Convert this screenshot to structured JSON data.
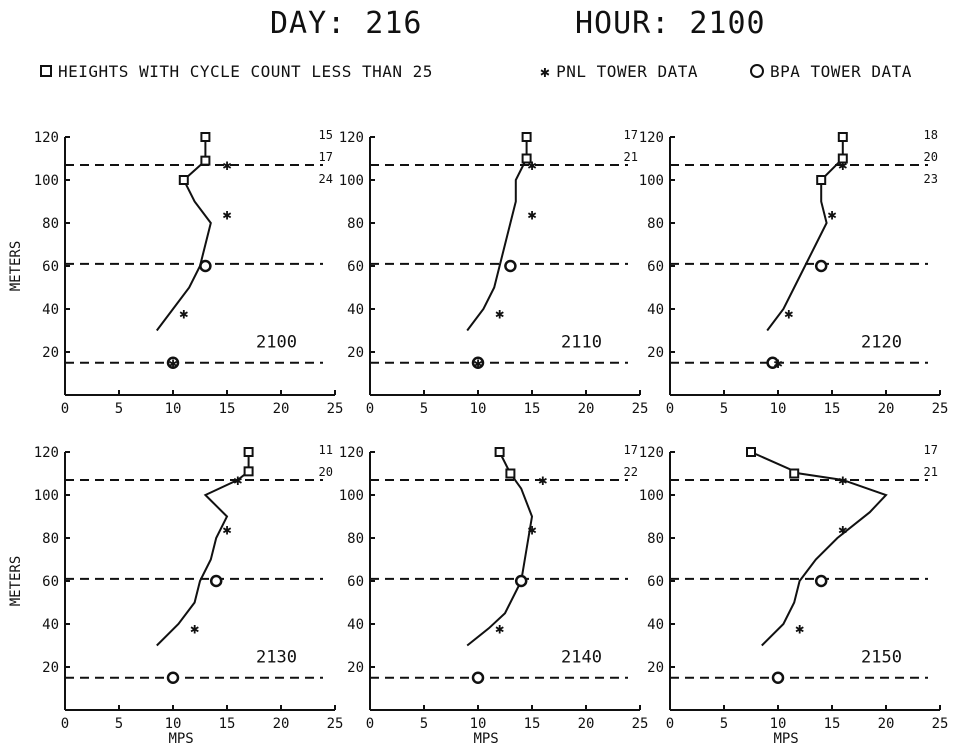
{
  "header": {
    "day_label": "DAY: 216",
    "hour_label": "HOUR: 2100",
    "legend": {
      "square": "HEIGHTS WITH CYCLE COUNT LESS THAN 25",
      "star": "PNL TOWER DATA",
      "circle": "BPA TOWER DATA"
    }
  },
  "axes": {
    "ylabel": "METERS",
    "xlabel": "MPS",
    "xticks": [
      "0",
      "5",
      "10",
      "15",
      "20",
      "25"
    ],
    "yticks": [
      "20",
      "40",
      "60",
      "80",
      "100",
      "120"
    ]
  },
  "chart_data": [
    {
      "type": "line",
      "panel_label": "2100",
      "xlim": [
        0,
        25
      ],
      "ylim": [
        0,
        120
      ],
      "reference_heights": [
        107,
        61,
        15
      ],
      "cycle_counts": [
        "15",
        "17",
        "24"
      ],
      "profile": [
        [
          8.5,
          30
        ],
        [
          10,
          40
        ],
        [
          11.5,
          50
        ],
        [
          12.5,
          60
        ],
        [
          13,
          70
        ],
        [
          13.5,
          80
        ],
        [
          12,
          90
        ],
        [
          11,
          100
        ],
        [
          13,
          109
        ],
        [
          13,
          120
        ]
      ],
      "squares": [
        [
          13,
          120
        ],
        [
          13,
          109
        ],
        [
          11,
          100
        ]
      ],
      "pnl_stars": [
        [
          15,
          107
        ],
        [
          15,
          84
        ],
        [
          11,
          38
        ],
        [
          10,
          15
        ]
      ],
      "bpa_circles": [
        [
          13,
          60
        ],
        [
          10,
          15
        ]
      ]
    },
    {
      "type": "line",
      "panel_label": "2110",
      "xlim": [
        0,
        25
      ],
      "ylim": [
        0,
        120
      ],
      "reference_heights": [
        107,
        61,
        15
      ],
      "cycle_counts": [
        "17",
        "21"
      ],
      "profile": [
        [
          9,
          30
        ],
        [
          10.5,
          40
        ],
        [
          11.5,
          50
        ],
        [
          12,
          60
        ],
        [
          12.5,
          70
        ],
        [
          13,
          80
        ],
        [
          13.5,
          90
        ],
        [
          13.5,
          100
        ],
        [
          14.5,
          110
        ],
        [
          14.5,
          120
        ]
      ],
      "squares": [
        [
          14.5,
          120
        ],
        [
          14.5,
          110
        ]
      ],
      "pnl_stars": [
        [
          15,
          107
        ],
        [
          15,
          84
        ],
        [
          12,
          38
        ],
        [
          10,
          15
        ]
      ],
      "bpa_circles": [
        [
          13,
          60
        ],
        [
          10,
          15
        ]
      ]
    },
    {
      "type": "line",
      "panel_label": "2120",
      "xlim": [
        0,
        25
      ],
      "ylim": [
        0,
        120
      ],
      "reference_heights": [
        107,
        61,
        15
      ],
      "cycle_counts": [
        "18",
        "20",
        "23"
      ],
      "profile": [
        [
          9,
          30
        ],
        [
          10.5,
          40
        ],
        [
          11.5,
          50
        ],
        [
          12.5,
          60
        ],
        [
          13.5,
          70
        ],
        [
          14.5,
          80
        ],
        [
          14,
          90
        ],
        [
          14,
          100
        ],
        [
          16,
          110
        ],
        [
          16,
          120
        ]
      ],
      "squares": [
        [
          16,
          120
        ],
        [
          16,
          110
        ],
        [
          14,
          100
        ]
      ],
      "pnl_stars": [
        [
          16,
          107
        ],
        [
          15,
          84
        ],
        [
          11,
          38
        ],
        [
          10,
          15
        ]
      ],
      "bpa_circles": [
        [
          14,
          60
        ],
        [
          9.5,
          15
        ]
      ]
    },
    {
      "type": "line",
      "panel_label": "2130",
      "xlim": [
        0,
        25
      ],
      "ylim": [
        0,
        120
      ],
      "reference_heights": [
        107,
        61,
        15
      ],
      "cycle_counts": [
        "11",
        "20"
      ],
      "profile": [
        [
          8.5,
          30
        ],
        [
          10.5,
          40
        ],
        [
          12,
          50
        ],
        [
          12.5,
          60
        ],
        [
          13.5,
          70
        ],
        [
          14,
          80
        ],
        [
          15,
          90
        ],
        [
          13,
          100
        ],
        [
          16,
          107
        ],
        [
          17,
          111
        ],
        [
          17,
          120
        ]
      ],
      "squares": [
        [
          17,
          120
        ],
        [
          17,
          111
        ]
      ],
      "pnl_stars": [
        [
          16,
          107
        ],
        [
          15,
          84
        ],
        [
          12,
          38
        ]
      ],
      "bpa_circles": [
        [
          14,
          60
        ],
        [
          10,
          15
        ]
      ]
    },
    {
      "type": "line",
      "panel_label": "2140",
      "xlim": [
        0,
        25
      ],
      "ylim": [
        0,
        120
      ],
      "reference_heights": [
        107,
        61,
        15
      ],
      "cycle_counts": [
        "17",
        "22"
      ],
      "profile": [
        [
          9,
          30
        ],
        [
          11,
          38
        ],
        [
          12.5,
          45
        ],
        [
          14,
          60
        ],
        [
          14.5,
          75
        ],
        [
          15,
          90
        ],
        [
          14,
          103
        ],
        [
          13,
          110
        ],
        [
          12,
          120
        ]
      ],
      "squares": [
        [
          12,
          120
        ],
        [
          13,
          110
        ]
      ],
      "pnl_stars": [
        [
          16,
          107
        ],
        [
          15,
          84
        ],
        [
          12,
          38
        ]
      ],
      "bpa_circles": [
        [
          14,
          60
        ],
        [
          10,
          15
        ]
      ]
    },
    {
      "type": "line",
      "panel_label": "2150",
      "xlim": [
        0,
        25
      ],
      "ylim": [
        0,
        120
      ],
      "reference_heights": [
        107,
        61,
        15
      ],
      "cycle_counts": [
        "17",
        "21"
      ],
      "profile": [
        [
          8.5,
          30
        ],
        [
          10.5,
          40
        ],
        [
          11.5,
          50
        ],
        [
          12,
          60
        ],
        [
          13.5,
          70
        ],
        [
          15.5,
          80
        ],
        [
          18.5,
          92
        ],
        [
          20,
          100
        ],
        [
          16,
          107
        ],
        [
          12,
          110
        ],
        [
          7.5,
          120
        ]
      ],
      "squares": [
        [
          7.5,
          120
        ],
        [
          11.5,
          110
        ]
      ],
      "pnl_stars": [
        [
          16,
          107
        ],
        [
          16,
          84
        ],
        [
          12,
          38
        ]
      ],
      "bpa_circles": [
        [
          14,
          60
        ],
        [
          10,
          15
        ]
      ]
    }
  ]
}
